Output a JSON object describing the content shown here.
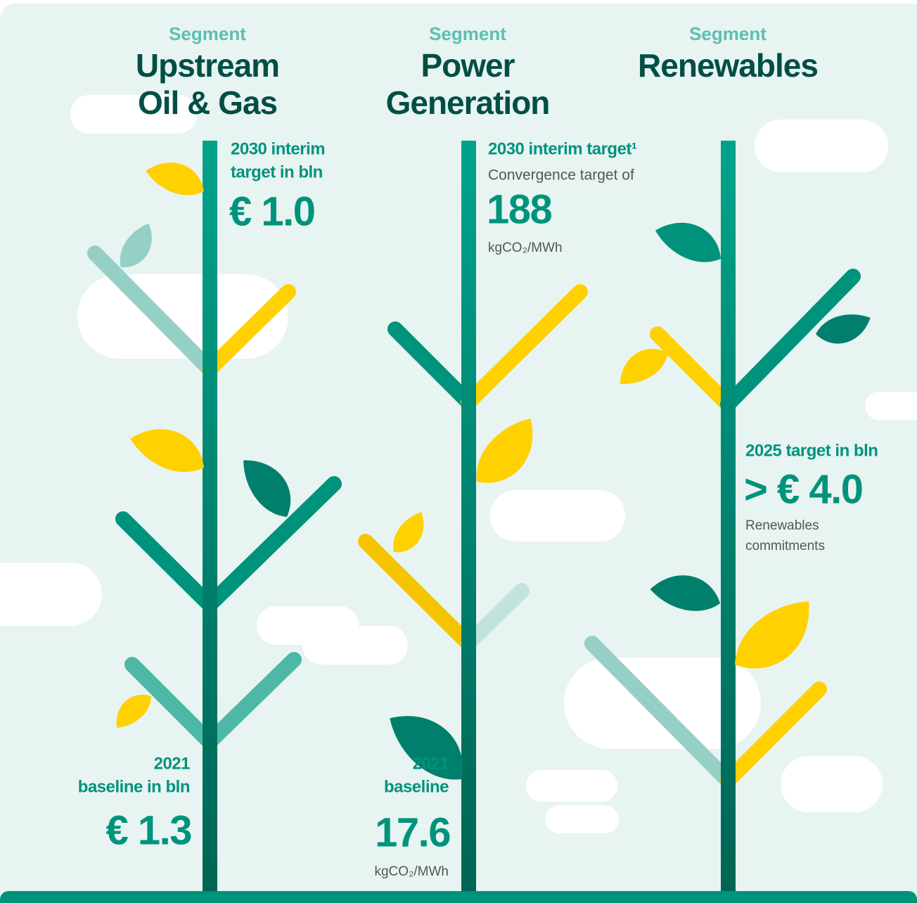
{
  "segments": [
    {
      "label": "Segment",
      "name": [
        "Upstream",
        "Oil & Gas"
      ],
      "target": {
        "heading": [
          "2030 interim",
          "target in bln"
        ],
        "value": "€ 1.0"
      },
      "baseline": {
        "heading": [
          "2021",
          "baseline in bln"
        ],
        "value": "€ 1.3"
      }
    },
    {
      "label": "Segment",
      "name": [
        "Power",
        "Generation"
      ],
      "target": {
        "heading": [
          "2030 interim target¹"
        ],
        "note": "Convergence target of",
        "value": "188",
        "unit": "kgCO₂/MWh"
      },
      "baseline": {
        "heading": [
          "2021",
          "baseline"
        ],
        "value": "17.6",
        "unit": "kgCO₂/MWh"
      }
    },
    {
      "label": "Segment",
      "name": [
        "Renewables"
      ],
      "target": {
        "heading": [
          "2025 target in bln"
        ],
        "value": "> € 4.0",
        "note": [
          "Renewables",
          "commitments"
        ]
      }
    }
  ]
}
